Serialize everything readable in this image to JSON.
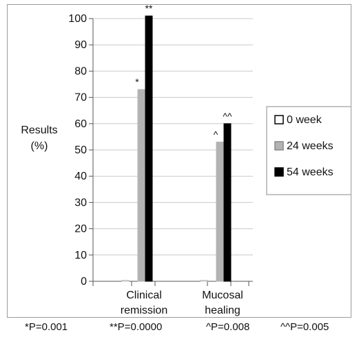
{
  "chart_data": {
    "type": "bar",
    "ylabel_line1": "Results",
    "ylabel_line2": "(%)",
    "ylim": [
      0,
      100
    ],
    "yticks": [
      0,
      10,
      20,
      30,
      40,
      50,
      60,
      70,
      80,
      90,
      100
    ],
    "grid": true,
    "legend_placement": "right",
    "categories": [
      {
        "line1": "Clinical",
        "line2": "remission"
      },
      {
        "line1": "Mucosal",
        "line2": "healing"
      }
    ],
    "series": [
      {
        "name": "0 week",
        "values": [
          0,
          0
        ],
        "color": "#ffffff"
      },
      {
        "name": "24 weeks",
        "values": [
          73,
          53
        ],
        "color": "#b3b3b3"
      },
      {
        "name": "54 weeks",
        "values": [
          101,
          60
        ],
        "color": "#000000"
      }
    ],
    "annotations": [
      {
        "text": "*",
        "category": 0,
        "series": 1
      },
      {
        "text": "**",
        "category": 0,
        "series": 2
      },
      {
        "text": "^",
        "category": 1,
        "series": 1
      },
      {
        "text": "^^",
        "category": 1,
        "series": 2
      }
    ]
  },
  "footnotes": [
    "*P=0.001",
    "**P=0.0000",
    "^P=0.008",
    "^^P=0.005"
  ]
}
